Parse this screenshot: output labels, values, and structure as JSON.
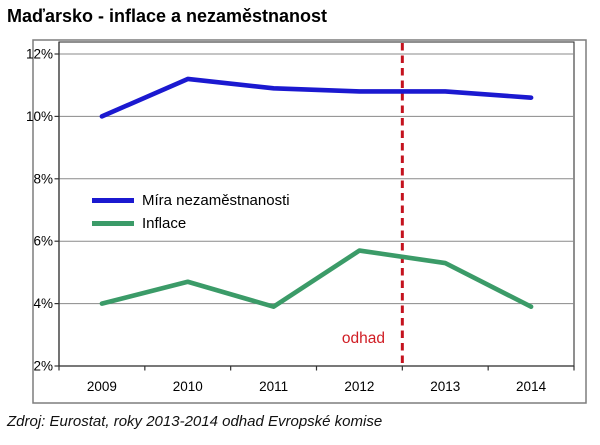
{
  "title": "Maďarsko - inflace a nezaměstnanost",
  "source": "Zdroj: Eurostat, roky 2013-2014 odhad Evropské komise",
  "annotation": {
    "label": "odhad"
  },
  "colors": {
    "unemployment": "#1b19d0",
    "inflation": "#3b9b68",
    "estimate_line": "#c4121e",
    "estimate_text": "#d01d24",
    "gridline": "#8a8a8a",
    "axis": "#333333",
    "frame": "#7d7d7d",
    "label": "#000000"
  },
  "chart_data": {
    "type": "line",
    "title": "Maďarsko - inflace a nezaměstnanost",
    "categories": [
      "2009",
      "2010",
      "2011",
      "2012",
      "2013",
      "2014"
    ],
    "series": [
      {
        "name": "Míra nezaměstnanosti",
        "color_key": "unemployment",
        "values": [
          10.0,
          11.2,
          10.9,
          10.8,
          10.8,
          10.6
        ]
      },
      {
        "name": "Inflace",
        "color_key": "inflation",
        "values": [
          4.0,
          4.7,
          3.9,
          5.7,
          5.3,
          3.9
        ]
      }
    ],
    "yticks": [
      {
        "value": 2,
        "label": "2%"
      },
      {
        "value": 4,
        "label": "4%"
      },
      {
        "value": 6,
        "label": "6%"
      },
      {
        "value": 8,
        "label": "8%"
      },
      {
        "value": 10,
        "label": "10%"
      },
      {
        "value": 12,
        "label": "12%"
      }
    ],
    "ylim": [
      2,
      12.35
    ],
    "grid": true,
    "legend_position": "inside-left",
    "estimate_divider": {
      "between": [
        "2012",
        "2013"
      ],
      "style": "dashed",
      "label": "odhad"
    }
  }
}
